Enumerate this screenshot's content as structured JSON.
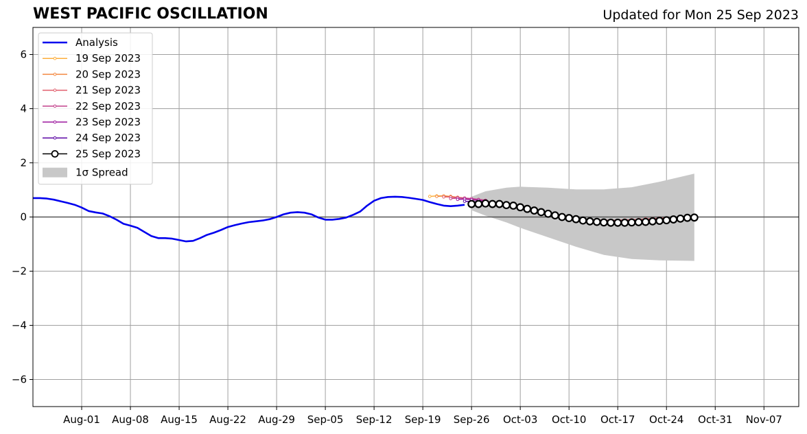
{
  "chart_data": {
    "type": "line",
    "title": "WEST PACIFIC OSCILLATION",
    "subtitle": "Updated for Mon 25 Sep 2023",
    "xlabel": "",
    "ylabel": "",
    "xlim": [
      "2023-07-25",
      "2023-11-12"
    ],
    "ylim": [
      -7,
      7
    ],
    "grid": true,
    "legend_position": "top-left",
    "x_tick_labels": [
      "Aug-01",
      "Aug-08",
      "Aug-15",
      "Aug-22",
      "Aug-29",
      "Sep-05",
      "Sep-12",
      "Sep-19",
      "Sep-26",
      "Oct-03",
      "Oct-10",
      "Oct-17",
      "Oct-24",
      "Oct-31",
      "Nov-07"
    ],
    "x_ticks": [
      "2023-08-01",
      "2023-08-08",
      "2023-08-15",
      "2023-08-22",
      "2023-08-29",
      "2023-09-05",
      "2023-09-12",
      "2023-09-19",
      "2023-09-26",
      "2023-10-03",
      "2023-10-10",
      "2023-10-17",
      "2023-10-24",
      "2023-10-31",
      "2023-11-07"
    ],
    "y_ticks": [
      -6,
      -4,
      -2,
      0,
      2,
      4,
      6
    ],
    "y_tick_labels": [
      "−6",
      "−4",
      "−2",
      "0",
      "2",
      "4",
      "6"
    ],
    "series": [
      {
        "name": "Analysis",
        "color": "#0000ee",
        "x": [
          "2023-07-25",
          "2023-07-26",
          "2023-07-27",
          "2023-07-28",
          "2023-07-29",
          "2023-07-30",
          "2023-07-31",
          "2023-08-01",
          "2023-08-02",
          "2023-08-03",
          "2023-08-04",
          "2023-08-05",
          "2023-08-06",
          "2023-08-07",
          "2023-08-08",
          "2023-08-09",
          "2023-08-10",
          "2023-08-11",
          "2023-08-12",
          "2023-08-13",
          "2023-08-14",
          "2023-08-15",
          "2023-08-16",
          "2023-08-17",
          "2023-08-18",
          "2023-08-19",
          "2023-08-20",
          "2023-08-21",
          "2023-08-22",
          "2023-08-23",
          "2023-08-24",
          "2023-08-25",
          "2023-08-26",
          "2023-08-27",
          "2023-08-28",
          "2023-08-29",
          "2023-08-30",
          "2023-08-31",
          "2023-09-01",
          "2023-09-02",
          "2023-09-03",
          "2023-09-04",
          "2023-09-05",
          "2023-09-06",
          "2023-09-07",
          "2023-09-08",
          "2023-09-09",
          "2023-09-10",
          "2023-09-11",
          "2023-09-12",
          "2023-09-13",
          "2023-09-14",
          "2023-09-15",
          "2023-09-16",
          "2023-09-17",
          "2023-09-18",
          "2023-09-19",
          "2023-09-20",
          "2023-09-21",
          "2023-09-22",
          "2023-09-23",
          "2023-09-24",
          "2023-09-25"
        ],
        "y": [
          0.7,
          0.7,
          0.68,
          0.64,
          0.58,
          0.52,
          0.45,
          0.35,
          0.22,
          0.17,
          0.13,
          0.03,
          -0.1,
          -0.25,
          -0.32,
          -0.4,
          -0.55,
          -0.7,
          -0.78,
          -0.78,
          -0.8,
          -0.85,
          -0.9,
          -0.88,
          -0.78,
          -0.66,
          -0.58,
          -0.48,
          -0.37,
          -0.3,
          -0.24,
          -0.19,
          -0.16,
          -0.13,
          -0.08,
          0.0,
          0.1,
          0.16,
          0.18,
          0.16,
          0.1,
          -0.02,
          -0.1,
          -0.1,
          -0.07,
          -0.02,
          0.08,
          0.2,
          0.42,
          0.6,
          0.7,
          0.74,
          0.75,
          0.74,
          0.71,
          0.67,
          0.63,
          0.55,
          0.48,
          0.42,
          0.4,
          0.42,
          0.45
        ]
      },
      {
        "name": "19 Sep 2023",
        "color": "#fcae3a",
        "x": [
          "2023-09-20",
          "2023-09-21",
          "2023-09-22",
          "2023-09-23",
          "2023-09-24",
          "2023-09-25"
        ],
        "y": [
          0.76,
          0.78,
          0.78,
          0.76,
          0.72,
          0.68
        ]
      },
      {
        "name": "20 Sep 2023",
        "color": "#f3873f",
        "x": [
          "2023-09-21",
          "2023-09-22",
          "2023-09-23",
          "2023-09-24",
          "2023-09-25",
          "2023-09-26",
          "2023-09-27"
        ],
        "y": [
          0.76,
          0.78,
          0.76,
          0.73,
          0.7,
          0.66,
          0.62
        ]
      },
      {
        "name": "21 Sep 2023",
        "color": "#e05d6b",
        "x": [
          "2023-09-22",
          "2023-09-23",
          "2023-09-24",
          "2023-09-25",
          "2023-09-26",
          "2023-09-27",
          "2023-09-28",
          "2023-09-29",
          "2023-09-30",
          "2023-10-01",
          "2023-10-02",
          "2023-10-03",
          "2023-10-04",
          "2023-10-05",
          "2023-10-06",
          "2023-10-07",
          "2023-10-08",
          "2023-10-09",
          "2023-10-10",
          "2023-10-11",
          "2023-10-12",
          "2023-10-13",
          "2023-10-14",
          "2023-10-15",
          "2023-10-16",
          "2023-10-17",
          "2023-10-18",
          "2023-10-19",
          "2023-10-20",
          "2023-10-21",
          "2023-10-22",
          "2023-10-23",
          "2023-10-24"
        ],
        "y": [
          0.74,
          0.74,
          0.72,
          0.7,
          0.66,
          0.62,
          0.58,
          0.54,
          0.5,
          0.46,
          0.42,
          0.37,
          0.32,
          0.26,
          0.2,
          0.14,
          0.08,
          0.03,
          -0.02,
          -0.05,
          -0.08,
          -0.1,
          -0.11,
          -0.12,
          -0.12,
          -0.12,
          -0.11,
          -0.1,
          -0.09,
          -0.07,
          -0.06,
          -0.04,
          -0.03
        ]
      },
      {
        "name": "22 Sep 2023",
        "color": "#c23f8a",
        "x": [
          "2023-09-23",
          "2023-09-24",
          "2023-09-25",
          "2023-09-26",
          "2023-09-27",
          "2023-09-28"
        ],
        "y": [
          0.68,
          0.7,
          0.7,
          0.68,
          0.65,
          0.62
        ]
      },
      {
        "name": "23 Sep 2023",
        "color": "#9b179e",
        "x": [
          "2023-09-24",
          "2023-09-25",
          "2023-09-26",
          "2023-09-27",
          "2023-09-28"
        ],
        "y": [
          0.65,
          0.66,
          0.64,
          0.62,
          0.58
        ]
      },
      {
        "name": "24 Sep 2023",
        "color": "#5b06a4",
        "x": [
          "2023-09-25",
          "2023-09-26",
          "2023-09-27"
        ],
        "y": [
          0.58,
          0.57,
          0.55
        ]
      },
      {
        "name": "25 Sep 2023",
        "color": "#000000",
        "marker": "open-circle",
        "x": [
          "2023-09-26",
          "2023-09-27",
          "2023-09-28",
          "2023-09-29",
          "2023-09-30",
          "2023-10-01",
          "2023-10-02",
          "2023-10-03",
          "2023-10-04",
          "2023-10-05",
          "2023-10-06",
          "2023-10-07",
          "2023-10-08",
          "2023-10-09",
          "2023-10-10",
          "2023-10-11",
          "2023-10-12",
          "2023-10-13",
          "2023-10-14",
          "2023-10-15",
          "2023-10-16",
          "2023-10-17",
          "2023-10-18",
          "2023-10-19",
          "2023-10-20",
          "2023-10-21",
          "2023-10-22",
          "2023-10-23",
          "2023-10-24",
          "2023-10-25",
          "2023-10-26",
          "2023-10-27",
          "2023-10-28"
        ],
        "y": [
          0.48,
          0.48,
          0.5,
          0.48,
          0.48,
          0.44,
          0.42,
          0.36,
          0.3,
          0.24,
          0.18,
          0.12,
          0.06,
          0.0,
          -0.04,
          -0.08,
          -0.13,
          -0.16,
          -0.18,
          -0.2,
          -0.21,
          -0.21,
          -0.21,
          -0.2,
          -0.19,
          -0.18,
          -0.16,
          -0.14,
          -0.12,
          -0.09,
          -0.06,
          -0.03,
          -0.02
        ]
      }
    ],
    "spread": {
      "name": "1σ Spread",
      "color": "#c8c8c8",
      "x": [
        "2023-09-26",
        "2023-09-28",
        "2023-10-01",
        "2023-10-03",
        "2023-10-07",
        "2023-10-11",
        "2023-10-15",
        "2023-10-19",
        "2023-10-23",
        "2023-10-28"
      ],
      "upper": [
        0.75,
        0.95,
        1.08,
        1.12,
        1.08,
        1.02,
        1.02,
        1.1,
        1.3,
        1.6
      ],
      "lower": [
        0.25,
        0.05,
        -0.2,
        -0.4,
        -0.75,
        -1.1,
        -1.4,
        -1.55,
        -1.6,
        -1.62
      ]
    }
  }
}
